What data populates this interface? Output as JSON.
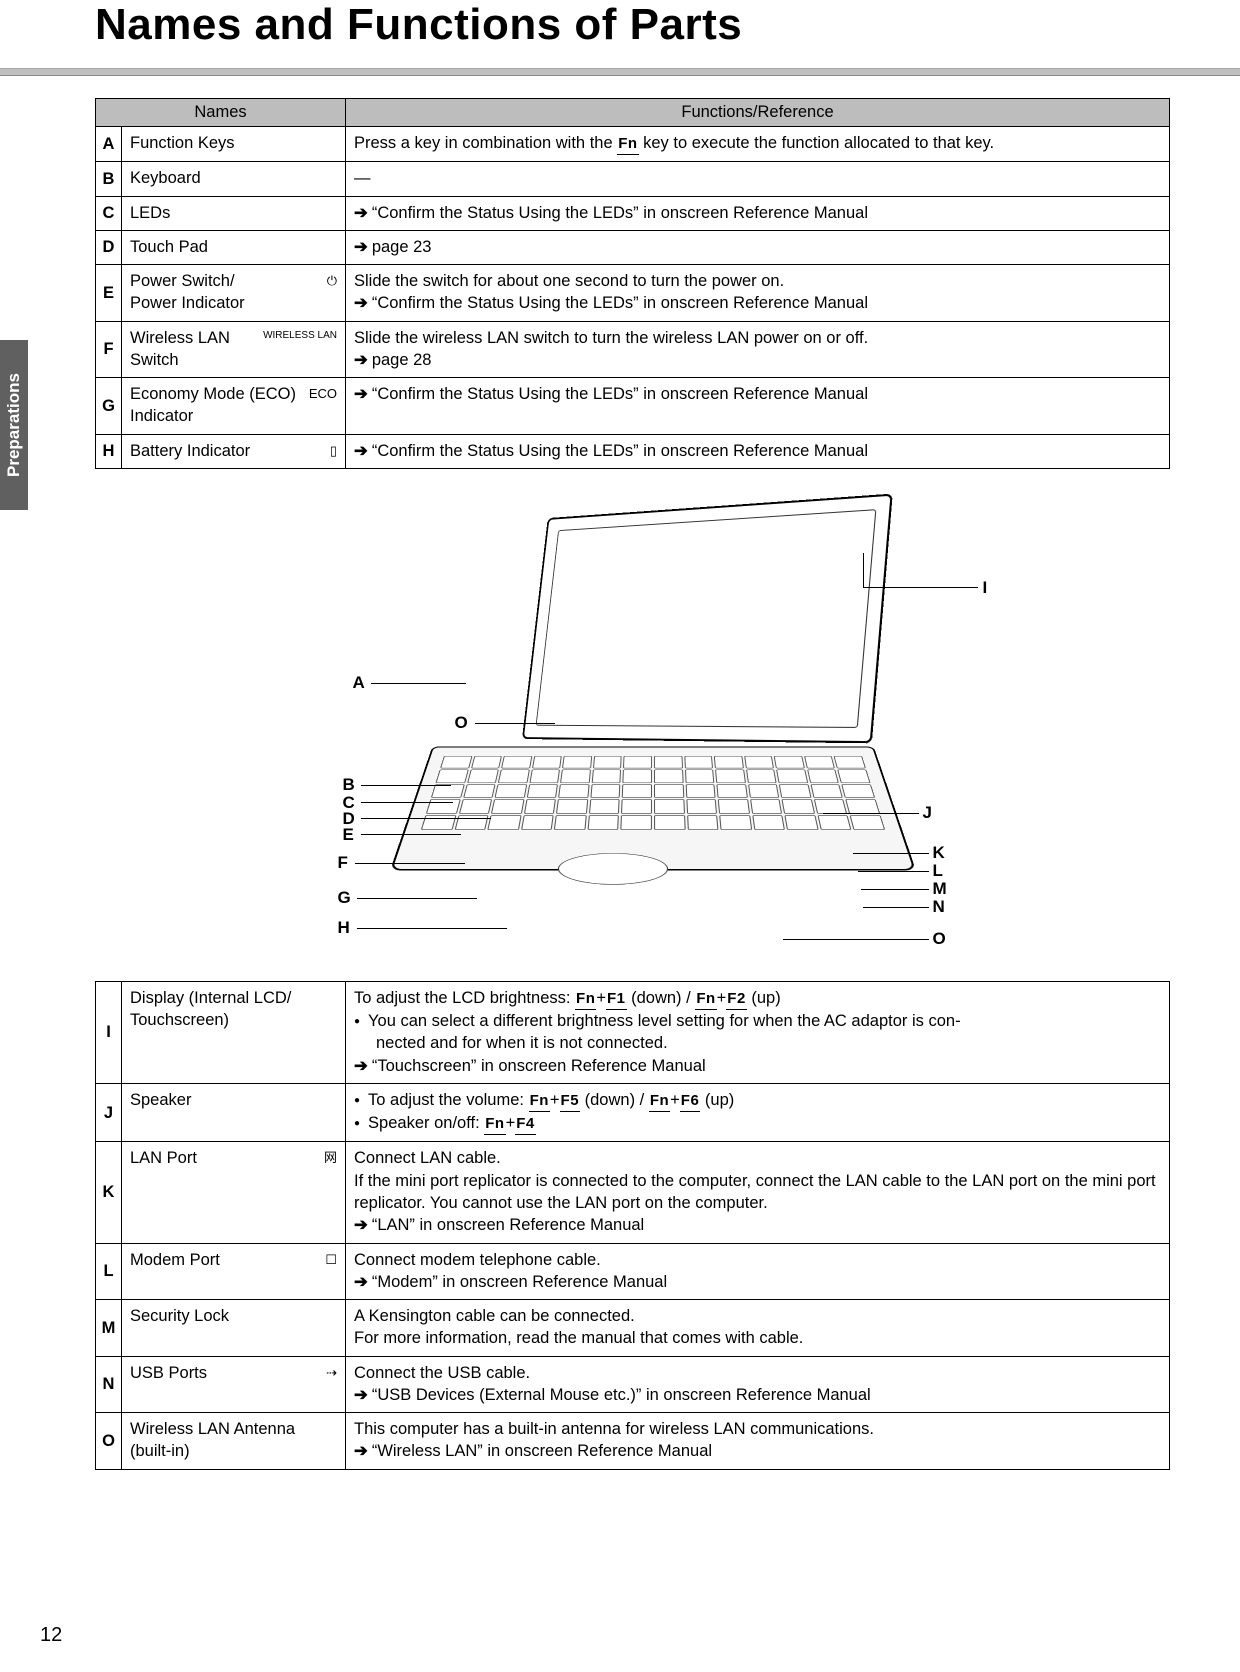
{
  "page": {
    "title": "Names and Functions of Parts",
    "section_tab": "Preparations",
    "page_number": "12"
  },
  "table_headers": {
    "names": "Names",
    "func": "Functions/Reference"
  },
  "rows_top": [
    {
      "letter": "A",
      "name": "Function Keys",
      "icon": "",
      "func_html": "Press a key in combination with the <span class='fnkey'>Fn</span> key to execute the function allocated to that key."
    },
    {
      "letter": "B",
      "name": "Keyboard",
      "icon": "",
      "func_html": "—"
    },
    {
      "letter": "C",
      "name": "LEDs",
      "icon": "",
      "func_html": "<span class='arrow'></span>“Confirm the Status Using the LEDs” in onscreen Reference Manual"
    },
    {
      "letter": "D",
      "name": "Touch Pad",
      "icon": "",
      "func_html": "<span class='arrow'></span>page 23"
    },
    {
      "letter": "E",
      "name": "Power Switch/<br>Power Indicator",
      "icon": "⏻",
      "func_html": "Slide the switch for about one second to turn the power on.<br><span class='arrow'></span>“Confirm the Status Using the LEDs” in onscreen Reference Manual"
    },
    {
      "letter": "F",
      "name": "Wireless LAN Switch",
      "icon": "WIRELESS LAN",
      "func_html": "Slide the wireless LAN switch to turn the wireless LAN power on or off.<br><span class='arrow'></span>page 28"
    },
    {
      "letter": "G",
      "name": "Economy Mode (ECO) Indicator",
      "icon": "ECO",
      "func_html": "<span class='arrow'></span>“Confirm the Status Using the LEDs” in onscreen Reference Manual"
    },
    {
      "letter": "H",
      "name": "Battery Indicator",
      "icon": "▯",
      "func_html": "<span class='arrow'></span>“Confirm the Status Using the LEDs” in onscreen Reference Manual"
    }
  ],
  "rows_bottom": [
    {
      "letter": "I",
      "name": "Display (Internal LCD/<br>Touchscreen)",
      "icon": "",
      "func_html": "To adjust the LCD brightness: <span class='fnkey'>Fn</span>+<span class='fnkey'>F1</span> (down) / <span class='fnkey'>Fn</span>+<span class='fnkey'>F2</span> (up)<br><span class='bullet'></span>You can select a different brightness level setting for when the AC adaptor is con-<span class='indent'>nected and for when it is not connected.</span><span class='arrow'></span>“Touchscreen” in onscreen Reference Manual"
    },
    {
      "letter": "J",
      "name": "Speaker",
      "icon": "",
      "func_html": "<span class='bullet'></span>To adjust the volume: <span class='fnkey'>Fn</span>+<span class='fnkey'>F5</span> (down) / <span class='fnkey'>Fn</span>+<span class='fnkey'>F6</span> (up)<br><span class='bullet'></span>Speaker on/off: <span class='fnkey'>Fn</span>+<span class='fnkey'>F4</span>"
    },
    {
      "letter": "K",
      "name": "LAN Port",
      "icon": "⽹",
      "func_html": "Connect LAN cable.<br>If the mini port replicator is connected to the computer, connect the LAN cable to the LAN port on the mini port replicator. You cannot use the LAN port on the computer.<br><span class='arrow'></span>“LAN” in onscreen Reference Manual"
    },
    {
      "letter": "L",
      "name": "Modem Port",
      "icon": "☐",
      "func_html": "Connect modem telephone cable.<br><span class='arrow'></span>“Modem” in onscreen Reference Manual"
    },
    {
      "letter": "M",
      "name": "Security Lock",
      "icon": "",
      "func_html": "A Kensington cable can be connected.<br>For more information, read the manual that comes with cable."
    },
    {
      "letter": "N",
      "name": "USB Ports",
      "icon": "⇢",
      "func_html": "Connect the USB cable.<br><span class='arrow'></span>“USB Devices (External Mouse etc.)” in onscreen Reference Manual"
    },
    {
      "letter": "O",
      "name": "Wireless LAN Antenna (built-in)",
      "icon": "",
      "func_html": "This computer has a built-in antenna for wireless LAN communications.<br><span class='arrow'></span>“Wireless LAN” in onscreen Reference Manual"
    }
  ],
  "diagram_labels": {
    "left": [
      "A",
      "O",
      "B",
      "C",
      "D",
      "E",
      "F",
      "G",
      "H"
    ],
    "right": [
      "I",
      "J",
      "K",
      "L",
      "M",
      "N",
      "O"
    ]
  },
  "colors": {
    "header_bg": "#bdbdbd",
    "tab_bg": "#606060",
    "text": "#000000"
  }
}
